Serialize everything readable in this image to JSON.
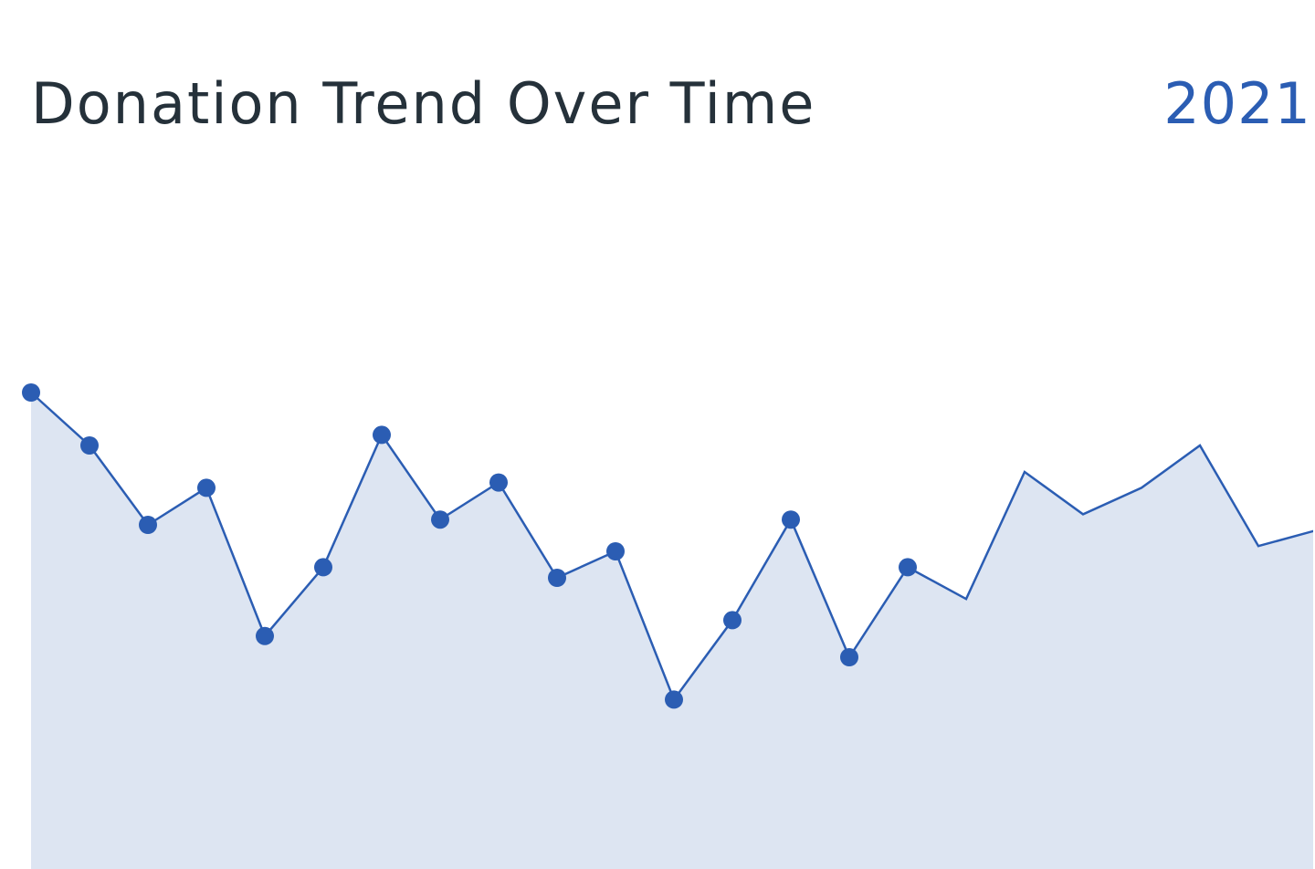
{
  "header": {
    "title": "Donation Trend Over Time",
    "year": "2021"
  },
  "colors": {
    "accent": "#2b5db3",
    "area_fill": "#dde5f2",
    "title_text": "#25313a"
  },
  "chart_data": {
    "type": "area",
    "title": "Donation Trend Over Time",
    "xlabel": "",
    "ylabel": "",
    "grid": false,
    "axes_visible": false,
    "x": [
      1,
      2,
      3,
      4,
      5,
      6,
      7,
      8,
      9,
      10,
      11,
      12,
      13,
      14,
      15,
      16,
      17,
      18,
      19,
      20,
      21,
      22,
      23
    ],
    "series": [
      {
        "values": [
          90,
          80,
          65,
          72,
          44,
          57,
          82,
          66,
          73,
          55,
          60,
          32,
          47,
          66,
          40,
          57,
          51,
          75,
          67,
          72,
          80,
          61,
          64
        ],
        "markers_shown_through_index": 15
      }
    ],
    "ylim": [
      0,
      150
    ]
  }
}
